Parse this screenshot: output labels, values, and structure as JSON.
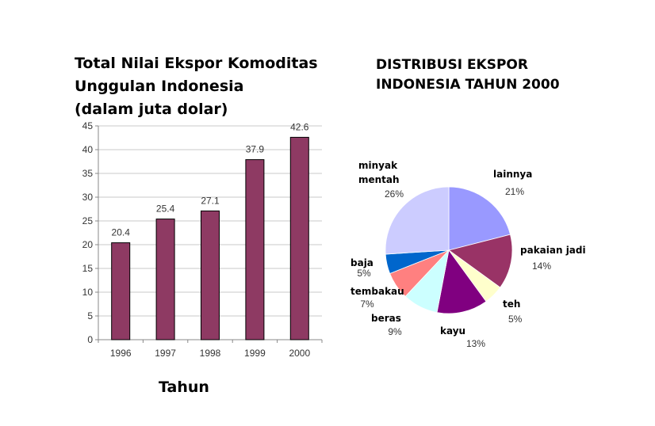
{
  "chart_data": [
    {
      "type": "bar",
      "title": "Total Nilai Ekspor Komoditas Unggulan Indonesia (dalam juta dolar)",
      "title_lines": [
        "Total Nilai Ekspor Komoditas",
        "Unggulan Indonesia",
        "(dalam juta dolar)"
      ],
      "xlabel": "Tahun",
      "ylabel": "",
      "categories": [
        "1996",
        "1997",
        "1998",
        "1999",
        "2000"
      ],
      "values": [
        20.4,
        25.4,
        27.1,
        37.9,
        42.6
      ],
      "value_labels": [
        "20.4",
        "25.4",
        "27.1",
        "37.9",
        "42.6"
      ],
      "ylim": [
        0,
        45
      ],
      "yticks": [
        "0",
        "5",
        "10",
        "15",
        "20",
        "25",
        "30",
        "35",
        "40",
        "45"
      ],
      "grid": true,
      "bar_color": "#8e3a63"
    },
    {
      "type": "pie",
      "title": "DISTRIBUSI EKSPOR INDONESIA TAHUN 2000",
      "title_lines": [
        "DISTRIBUSI EKSPOR",
        "INDONESIA TAHUN 2000"
      ],
      "slices": [
        {
          "name": "lainnya",
          "pct_label": "21%",
          "value": 21,
          "color": "#9999ff"
        },
        {
          "name": "pakaian jadi",
          "pct_label": "14%",
          "value": 14,
          "color": "#993366"
        },
        {
          "name": "teh",
          "pct_label": "5%",
          "value": 5,
          "color": "#ffffcc"
        },
        {
          "name": "kayu",
          "pct_label": "13%",
          "value": 13,
          "color": "#800080"
        },
        {
          "name": "beras",
          "pct_label": "9%",
          "value": 9,
          "color": "#ccffff"
        },
        {
          "name": "tembakau",
          "pct_label": "7%",
          "value": 7,
          "color": "#ff8080"
        },
        {
          "name": "baja",
          "pct_label": "5%",
          "value": 5,
          "color": "#0066cc"
        },
        {
          "name": "minyak mentah",
          "name_lines": [
            "minyak",
            "mentah"
          ],
          "pct_label": "26%",
          "value": 26,
          "color": "#ccccff"
        }
      ]
    }
  ]
}
